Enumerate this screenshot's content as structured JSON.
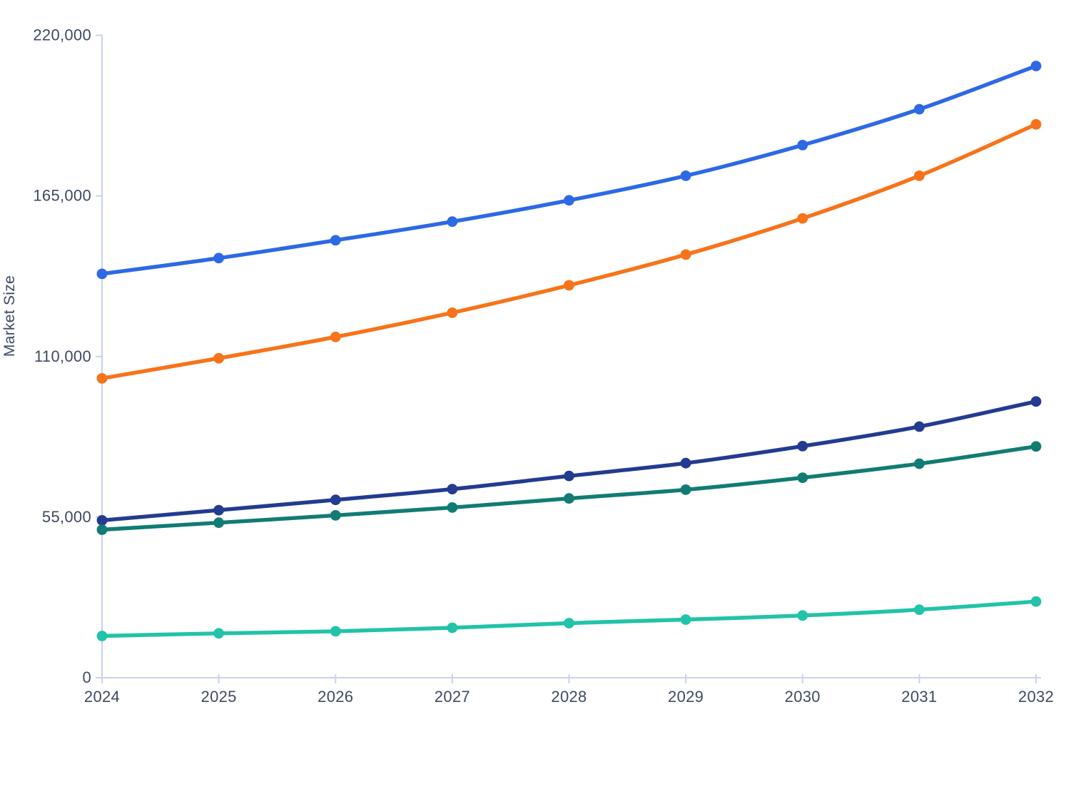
{
  "chart_data": {
    "type": "line",
    "title": "",
    "xlabel": "",
    "ylabel": "Market Size",
    "x": [
      2024,
      2025,
      2026,
      2027,
      2028,
      2029,
      2030,
      2031,
      2032
    ],
    "x_tick_labels": [
      "2024",
      "2025",
      "2026",
      "2027",
      "2028",
      "2029",
      "2030",
      "2031",
      "2032"
    ],
    "y_ticks": [
      0,
      55000,
      110000,
      165000,
      220000
    ],
    "y_tick_labels": [
      "0",
      "55,000",
      "110,000",
      "165,000",
      "220,000"
    ],
    "ylim": [
      0,
      220000
    ],
    "grid": false,
    "legend": "none",
    "curve": "monotone",
    "series": [
      {
        "id": "series-1",
        "color": "#2D69E5",
        "values": [
          138300,
          143700,
          149800,
          156200,
          163500,
          171900,
          182400,
          194700,
          209500
        ]
      },
      {
        "id": "series-2",
        "color": "#F7731A",
        "values": [
          102500,
          109400,
          116700,
          125000,
          134400,
          144900,
          157300,
          171900,
          189500
        ]
      },
      {
        "id": "series-3",
        "color": "#233B90",
        "values": [
          53900,
          57400,
          60900,
          64600,
          69100,
          73500,
          79300,
          86000,
          94600
        ]
      },
      {
        "id": "series-4",
        "color": "#117C73",
        "values": [
          50700,
          53100,
          55600,
          58300,
          61400,
          64400,
          68500,
          73300,
          79200
        ]
      },
      {
        "id": "series-5",
        "color": "#22C3A8",
        "values": [
          14300,
          15200,
          15900,
          17100,
          18700,
          19900,
          21300,
          23300,
          26100
        ]
      }
    ]
  },
  "style": {
    "background": "#FFFFFF",
    "axis_line_color": "#C9D2F0",
    "tick_text_color": "#3E4A61"
  }
}
